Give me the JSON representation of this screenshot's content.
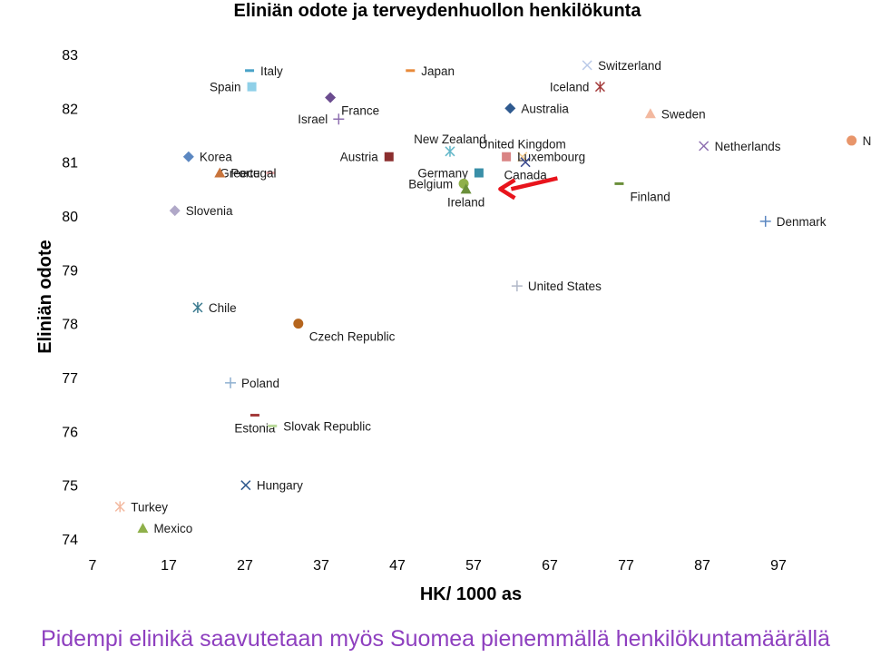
{
  "chart_data": {
    "type": "scatter",
    "title": "Eliniän odote ja terveydenhuollon henkilökunta",
    "xlabel": "HK/ 1000 as",
    "ylabel": "Eliniän odote",
    "xlim": [
      7,
      107
    ],
    "ylim": [
      74,
      83
    ],
    "x_ticks": [
      "7",
      "17",
      "27",
      "37",
      "47",
      "57",
      "67",
      "77",
      "87",
      "97"
    ],
    "y_ticks": [
      "74",
      "75",
      "76",
      "77",
      "78",
      "79",
      "80",
      "81",
      "82",
      "83"
    ],
    "grid": false,
    "legend": "none",
    "points": [
      {
        "label": "Italy",
        "x": 27.6,
        "y": 82.7,
        "marker": "dash",
        "color": "#4aa3c8",
        "label_pos": "right"
      },
      {
        "label": "Spain",
        "x": 27.9,
        "y": 82.4,
        "marker": "square",
        "color": "#8fd0e8",
        "label_pos": "left"
      },
      {
        "label": "Japan",
        "x": 48.7,
        "y": 82.7,
        "marker": "dash",
        "color": "#e88a3a",
        "label_pos": "right"
      },
      {
        "label": "Switzerland",
        "x": 71.9,
        "y": 82.8,
        "marker": "x",
        "color": "#b9c9e8",
        "label_pos": "right"
      },
      {
        "label": "Iceland",
        "x": 73.6,
        "y": 82.4,
        "marker": "star",
        "color": "#a33a3a",
        "label_pos": "left"
      },
      {
        "label": "France",
        "x": 38.2,
        "y": 82.2,
        "marker": "diamond",
        "color": "#6b4c8f",
        "label_pos": "below-right"
      },
      {
        "label": "Australia",
        "x": 61.8,
        "y": 82.0,
        "marker": "diamond",
        "color": "#2f5a8f",
        "label_pos": "right"
      },
      {
        "label": "Sweden",
        "x": 80.2,
        "y": 81.9,
        "marker": "triangle",
        "color": "#f3b9a0",
        "label_pos": "right"
      },
      {
        "label": "Israel",
        "x": 39.3,
        "y": 81.8,
        "marker": "plus",
        "color": "#8e6fb0",
        "label_pos": "left"
      },
      {
        "label": "New Zealand",
        "x": 53.9,
        "y": 81.2,
        "marker": "star",
        "color": "#63b7c9",
        "label_pos": "above"
      },
      {
        "label": "United Kingdom",
        "x": 63.4,
        "y": 81.1,
        "marker": "x",
        "color": "#f2c98a",
        "label_pos": "above"
      },
      {
        "label": "Netherlands",
        "x": 87.2,
        "y": 81.3,
        "marker": "x",
        "color": "#8e6fb0",
        "label_pos": "right"
      },
      {
        "label": "Norway",
        "x": 106.6,
        "y": 81.4,
        "marker": "circle",
        "color": "#e8956a",
        "label_pos": "right"
      },
      {
        "label": "Korea",
        "x": 19.6,
        "y": 81.1,
        "marker": "diamond",
        "color": "#5b87c1",
        "label_pos": "right"
      },
      {
        "label": "Austria",
        "x": 45.9,
        "y": 81.1,
        "marker": "square",
        "color": "#8b2e2e",
        "label_pos": "left"
      },
      {
        "label": "Luxembourg",
        "x": 61.3,
        "y": 81.1,
        "marker": "square",
        "color": "#d98484",
        "label_pos": "right"
      },
      {
        "label": "Canada",
        "x": 63.8,
        "y": 81.0,
        "marker": "x",
        "color": "#3b4a8f",
        "label_pos": "below"
      },
      {
        "label": "Greece",
        "x": 30.4,
        "y": 80.8,
        "marker": "dash",
        "color": "#f3b2b2",
        "label_pos": "left"
      },
      {
        "label": "Portugal",
        "x": 23.7,
        "y": 80.8,
        "marker": "triangle",
        "color": "#c8743c",
        "label_pos": "right"
      },
      {
        "label": "Germany",
        "x": 57.7,
        "y": 80.8,
        "marker": "square",
        "color": "#3a8fa8",
        "label_pos": "left"
      },
      {
        "label": "Finland",
        "x": 76.1,
        "y": 80.6,
        "marker": "dash",
        "color": "#6a8f3a",
        "label_pos": "below-right"
      },
      {
        "label": "Belgium",
        "x": 55.7,
        "y": 80.6,
        "marker": "circle",
        "color": "#8fb04a",
        "label_pos": "left"
      },
      {
        "label": "Ireland",
        "x": 56.0,
        "y": 80.5,
        "marker": "triangle",
        "color": "#6a8f3a",
        "label_pos": "below"
      },
      {
        "label": "Slovenia",
        "x": 17.8,
        "y": 80.1,
        "marker": "diamond",
        "color": "#b0a8c8",
        "label_pos": "right"
      },
      {
        "label": "Denmark",
        "x": 95.3,
        "y": 79.9,
        "marker": "plus",
        "color": "#5b87c1",
        "label_pos": "right"
      },
      {
        "label": "United States",
        "x": 62.7,
        "y": 78.7,
        "marker": "plus",
        "color": "#b0b8c8",
        "label_pos": "right"
      },
      {
        "label": "Chile",
        "x": 20.8,
        "y": 78.3,
        "marker": "star",
        "color": "#3a7a8f",
        "label_pos": "right"
      },
      {
        "label": "Czech Republic",
        "x": 34.0,
        "y": 78.0,
        "marker": "circle",
        "color": "#b5651d",
        "label_pos": "below-right"
      },
      {
        "label": "Poland",
        "x": 25.1,
        "y": 76.9,
        "marker": "plus",
        "color": "#8fb0d0",
        "label_pos": "right"
      },
      {
        "label": "Estonia",
        "x": 28.3,
        "y": 76.3,
        "marker": "dash",
        "color": "#a33a3a",
        "label_pos": "below"
      },
      {
        "label": "Slovak Republic",
        "x": 30.6,
        "y": 76.1,
        "marker": "dash",
        "color": "#b9d99a",
        "label_pos": "right"
      },
      {
        "label": "Hungary",
        "x": 27.1,
        "y": 75.0,
        "marker": "x",
        "color": "#2f5a8f",
        "label_pos": "right"
      },
      {
        "label": "Turkey",
        "x": 10.6,
        "y": 74.6,
        "marker": "star",
        "color": "#f3b9a0",
        "label_pos": "right"
      },
      {
        "label": "Mexico",
        "x": 13.6,
        "y": 74.2,
        "marker": "triangle",
        "color": "#8fb04a",
        "label_pos": "right"
      }
    ],
    "annotation": {
      "type": "arrow",
      "color": "#e8141c",
      "from": [
        68.0,
        80.7
      ],
      "to": [
        60.5,
        80.5
      ]
    }
  },
  "caption": "Pidempi elinikä saavutetaan myös Suomea pienemmällä henkilökuntamäärällä"
}
